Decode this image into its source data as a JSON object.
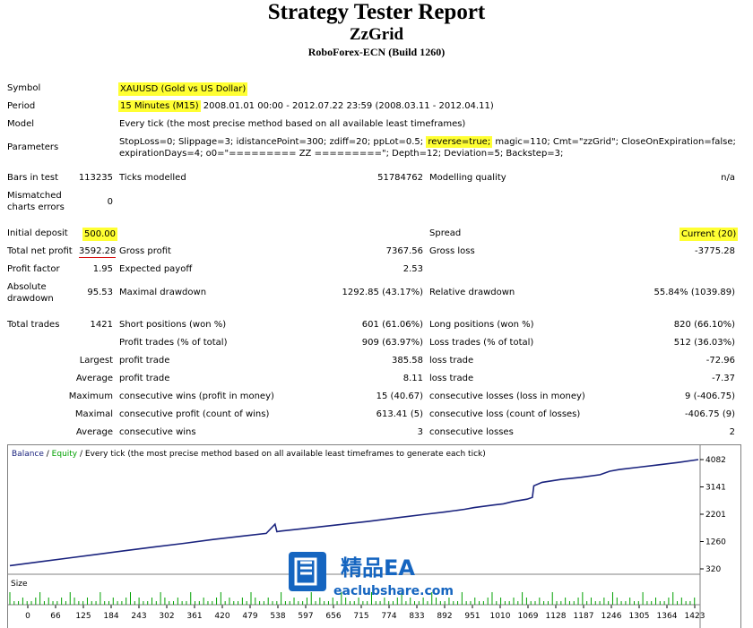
{
  "header": {
    "title": "Strategy Tester Report",
    "subtitle": "ZzGrid",
    "build": "RoboForex-ECN (Build 1260)"
  },
  "report": {
    "symbol_label": "Symbol",
    "symbol_value": "XAUUSD (Gold vs US Dollar)",
    "period_label": "Period",
    "period_hl": "15 Minutes (M15)",
    "period_rest": " 2008.01.01 00:00 - 2012.07.22 23:59 (2008.03.11 - 2012.04.11)",
    "model_label": "Model",
    "model_value": "Every tick (the most precise method based on all available least timeframes)",
    "parameters_label": "Parameters",
    "params_line1_a": "StopLoss=0; Slippage=3; idistancePoint=300; zdiff=20; ppLot=0.5; ",
    "params_line1_hl": "reverse=true;",
    "params_line1_b": " magic=110; Cmt=\"zzGrid\"; CloseOnExpiration=false;",
    "params_line2": "expirationDays=4; o0=\"========= ZZ =========\"; Depth=12; Deviation=5; Backstep=3;",
    "bars_label": "Bars in test",
    "bars_value": "113235",
    "ticks_label": "Ticks modelled",
    "ticks_value": "51784762",
    "quality_label": "Modelling quality",
    "quality_value": "n/a",
    "mismatch_label1": "Mismatched",
    "mismatch_label2": "charts errors",
    "mismatch_value": "0",
    "deposit_label": "Initial deposit",
    "deposit_value": "500.00",
    "spread_label": "Spread",
    "spread_value": "Current (20)",
    "net_label": "Total net profit",
    "net_value": "3592.28",
    "gross_profit_label": "Gross profit",
    "gross_profit_value": "7367.56",
    "gross_loss_label": "Gross loss",
    "gross_loss_value": "-3775.28",
    "pf_label": "Profit factor",
    "pf_value": "1.95",
    "ep_label": "Expected payoff",
    "ep_value": "2.53",
    "abs_dd_label1": "Absolute",
    "abs_dd_label2": "drawdown",
    "abs_dd_value": "95.53",
    "max_dd_label": "Maximal drawdown",
    "max_dd_value": "1292.85 (43.17%)",
    "rel_dd_label": "Relative drawdown",
    "rel_dd_value": "55.84% (1039.89)",
    "trades_label": "Total trades",
    "trades_value": "1421",
    "short_label": "Short positions (won %)",
    "short_value": "601 (61.06%)",
    "long_label": "Long positions (won %)",
    "long_value": "820 (66.10%)",
    "pt_label": "Profit trades (% of total)",
    "pt_value": "909 (63.97%)",
    "lt_label": "Loss trades (% of total)",
    "lt_value": "512 (36.03%)",
    "largest_label": "Largest",
    "largest_pt_label": "profit trade",
    "largest_pt_value": "385.58",
    "largest_lt_label": "loss trade",
    "largest_lt_value": "-72.96",
    "average_label": "Average",
    "average_pt_label": "profit trade",
    "average_pt_value": "8.11",
    "average_lt_label": "loss trade",
    "average_lt_value": "-7.37",
    "maximum_label": "Maximum",
    "max_cw_label": "consecutive wins (profit in money)",
    "max_cw_value": "15 (40.67)",
    "max_cl_label": "consecutive losses (loss in money)",
    "max_cl_value": "9 (-406.75)",
    "maximal_label": "Maximal",
    "maximal_cp_label": "consecutive profit (count of wins)",
    "maximal_cp_value": "613.41 (5)",
    "maximal_cl_label": "consecutive loss (count of losses)",
    "maximal_cl_value": "-406.75 (9)",
    "average2_label": "Average",
    "avg_cw_label": "consecutive wins",
    "avg_cw_value": "3",
    "avg_cl_label": "consecutive losses",
    "avg_cl_value": "2"
  },
  "chart_data": {
    "type": "line",
    "legend": {
      "balance": "Balance",
      "sep": " / ",
      "equity": "Equity",
      "rest": " / Every tick (the most precise method based on all available least timeframes to generate each tick)"
    },
    "size_label": "Size",
    "y_ticks": [
      "4082",
      "3141",
      "2201",
      "1260",
      "320"
    ],
    "ylim": [
      320,
      4082
    ],
    "x_ticks": [
      "0",
      "66",
      "125",
      "184",
      "243",
      "302",
      "361",
      "420",
      "479",
      "538",
      "597",
      "656",
      "715",
      "774",
      "833",
      "892",
      "951",
      "1010",
      "1069",
      "1128",
      "1187",
      "1246",
      "1305",
      "1364",
      "1423"
    ],
    "xlim": [
      0,
      1423
    ],
    "balance_color": "#1a237e",
    "equity_color": "#00a000",
    "size_color": "#00a000",
    "series": [
      {
        "name": "Balance",
        "x": [
          0,
          60,
          120,
          180,
          240,
          300,
          360,
          420,
          480,
          530,
          548,
          552,
          560,
          620,
          680,
          740,
          800,
          860,
          900,
          940,
          960,
          1000,
          1020,
          1040,
          1069,
          1080,
          1083,
          1100,
          1140,
          1180,
          1220,
          1240,
          1260,
          1300,
          1340,
          1380,
          1423
        ],
        "y": [
          430,
          560,
          690,
          820,
          950,
          1080,
          1200,
          1330,
          1450,
          1540,
          1860,
          1600,
          1620,
          1730,
          1840,
          1950,
          2080,
          2200,
          2280,
          2370,
          2430,
          2520,
          2560,
          2640,
          2720,
          2780,
          3180,
          3300,
          3400,
          3470,
          3560,
          3680,
          3740,
          3820,
          3900,
          3980,
          4082
        ]
      }
    ]
  },
  "logo": {
    "cn_text": "精品EA",
    "url_text": "eaclubshare.com"
  }
}
